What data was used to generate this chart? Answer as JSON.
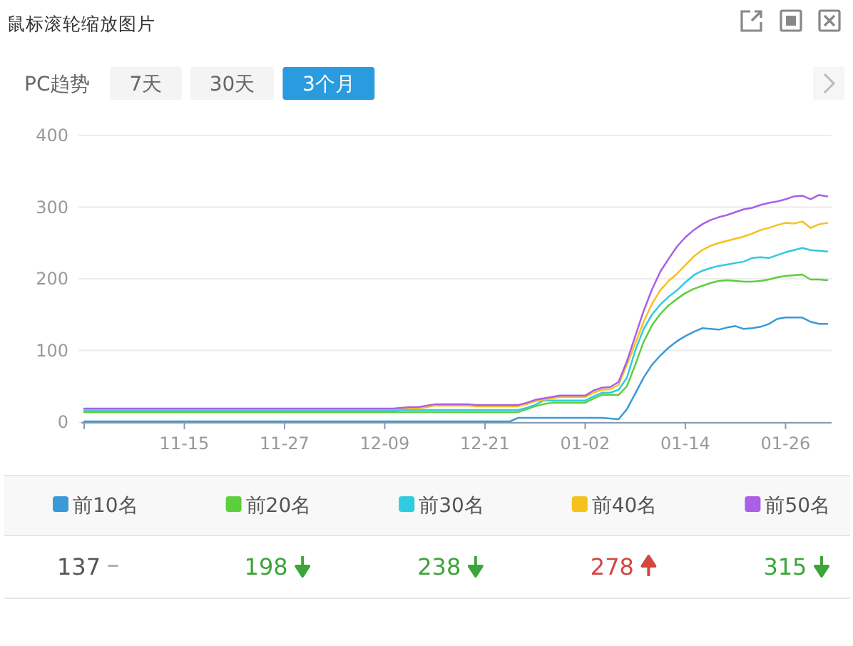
{
  "chart_data": {
    "type": "line",
    "title": "鼠标滚轮缩放图片",
    "subtitle": "PC趋势",
    "annotations": [
      "7天",
      "30天",
      "3个月",
      "137",
      "198",
      "238",
      "278",
      "315"
    ],
    "categories": [
      null,
      null,
      null,
      null,
      null,
      null,
      null,
      null,
      null,
      null,
      null,
      null,
      "11-15",
      null,
      null,
      null,
      null,
      null,
      null,
      null,
      null,
      null,
      null,
      null,
      "11-27",
      null,
      null,
      null,
      null,
      null,
      null,
      null,
      null,
      null,
      null,
      null,
      "12-09",
      null,
      null,
      null,
      null,
      null,
      null,
      null,
      null,
      null,
      null,
      null,
      "12-21",
      null,
      null,
      null,
      null,
      null,
      null,
      null,
      null,
      null,
      null,
      null,
      "01-02",
      null,
      null,
      null,
      null,
      null,
      null,
      null,
      null,
      null,
      null,
      null,
      "01-14",
      null,
      null,
      null,
      null,
      null,
      null,
      null,
      null,
      null,
      null,
      null,
      "01-26",
      null,
      null,
      null,
      null,
      null
    ],
    "ylim": [
      0,
      400
    ],
    "yticks": [
      0,
      100,
      200,
      300,
      400
    ],
    "grid": "y",
    "legend": "bottom",
    "series": [
      {
        "name": "前10名",
        "color": "#3a9ad9",
        "values": [
          1,
          1,
          1,
          1,
          1,
          1,
          1,
          1,
          1,
          1,
          1,
          1,
          1,
          1,
          1,
          1,
          1,
          1,
          1,
          1,
          1,
          1,
          1,
          1,
          1,
          1,
          1,
          1,
          1,
          1,
          1,
          1,
          1,
          1,
          1,
          1,
          1,
          1,
          1,
          1,
          1,
          1,
          1,
          1,
          1,
          1,
          1,
          1,
          1,
          1,
          1,
          1,
          6,
          6,
          6,
          6,
          6,
          6,
          6,
          6,
          6,
          6,
          6,
          5,
          4,
          18,
          40,
          62,
          80,
          93,
          104,
          113,
          120,
          126,
          131,
          130,
          129,
          132,
          134,
          130,
          131,
          133,
          137,
          144,
          146,
          146,
          146,
          140,
          137,
          137
        ]
      },
      {
        "name": "前20名",
        "color": "#5ccf3d",
        "values": [
          14,
          14,
          14,
          14,
          14,
          14,
          14,
          14,
          14,
          14,
          14,
          14,
          14,
          14,
          14,
          14,
          14,
          14,
          14,
          14,
          14,
          14,
          14,
          14,
          14,
          14,
          14,
          14,
          14,
          14,
          14,
          14,
          14,
          14,
          14,
          14,
          14,
          14,
          14,
          14,
          14,
          14,
          14,
          14,
          14,
          14,
          14,
          14,
          14,
          14,
          14,
          14,
          14,
          18,
          22,
          25,
          27,
          27,
          27,
          27,
          27,
          33,
          38,
          38,
          38,
          50,
          80,
          112,
          135,
          151,
          163,
          172,
          180,
          186,
          190,
          194,
          197,
          198,
          197,
          196,
          196,
          197,
          199,
          202,
          204,
          205,
          206,
          199,
          199,
          198
        ]
      },
      {
        "name": "前30名",
        "color": "#2fcbe0",
        "values": [
          16,
          16,
          16,
          16,
          16,
          16,
          16,
          16,
          16,
          16,
          16,
          16,
          16,
          16,
          16,
          16,
          16,
          16,
          16,
          16,
          16,
          16,
          16,
          16,
          16,
          16,
          16,
          16,
          16,
          16,
          16,
          16,
          16,
          16,
          16,
          16,
          16,
          16,
          17,
          17,
          17,
          17,
          17,
          17,
          17,
          17,
          17,
          17,
          17,
          17,
          17,
          17,
          17,
          20,
          24,
          30,
          30,
          30,
          30,
          30,
          30,
          36,
          41,
          41,
          45,
          62,
          100,
          130,
          150,
          164,
          175,
          184,
          195,
          205,
          211,
          215,
          218,
          220,
          222,
          224,
          229,
          230,
          229,
          233,
          237,
          240,
          243,
          240,
          239,
          238
        ]
      },
      {
        "name": "前40名",
        "color": "#f5c21b",
        "values": [
          18,
          18,
          18,
          18,
          18,
          18,
          18,
          18,
          18,
          18,
          18,
          18,
          18,
          18,
          18,
          18,
          18,
          18,
          18,
          18,
          18,
          18,
          18,
          18,
          18,
          18,
          18,
          18,
          18,
          18,
          18,
          18,
          18,
          18,
          18,
          18,
          18,
          18,
          19,
          19,
          19,
          21,
          23,
          23,
          23,
          23,
          23,
          22,
          22,
          22,
          22,
          22,
          22,
          25,
          29,
          31,
          33,
          35,
          35,
          35,
          35,
          41,
          45,
          46,
          52,
          80,
          110,
          140,
          165,
          184,
          197,
          207,
          219,
          231,
          240,
          246,
          250,
          253,
          256,
          259,
          263,
          268,
          271,
          275,
          278,
          277,
          280,
          271,
          276,
          278
        ]
      },
      {
        "name": "前50名",
        "color": "#a95fe6",
        "values": [
          19,
          19,
          19,
          19,
          19,
          19,
          19,
          19,
          19,
          19,
          19,
          19,
          19,
          19,
          19,
          19,
          19,
          19,
          19,
          19,
          19,
          19,
          19,
          19,
          19,
          19,
          19,
          19,
          19,
          19,
          19,
          19,
          19,
          19,
          19,
          19,
          19,
          19,
          20,
          21,
          21,
          23,
          25,
          25,
          25,
          25,
          25,
          24,
          24,
          24,
          24,
          24,
          24,
          27,
          31,
          33,
          35,
          37,
          37,
          37,
          37,
          44,
          48,
          49,
          56,
          85,
          120,
          155,
          185,
          210,
          228,
          245,
          258,
          268,
          276,
          282,
          286,
          289,
          293,
          297,
          299,
          303,
          306,
          308,
          311,
          315,
          316,
          311,
          317,
          315
        ]
      }
    ]
  }
}
